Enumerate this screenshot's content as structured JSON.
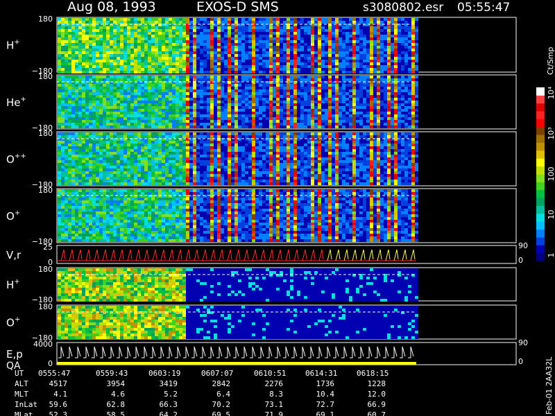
{
  "header": {
    "date": "Aug 08, 1993",
    "instrument": "EXOS-D SMS",
    "file": "s3080802.esr",
    "time": "05:55:47"
  },
  "chart_data": {
    "type": "heatmap",
    "panels": [
      {
        "id": "h-plus",
        "label_base": "H",
        "label_sup": "+",
        "ytick_top": "180",
        "ytick_bottom": "−180",
        "kind": "spectrogram"
      },
      {
        "id": "he-plus",
        "label_base": "He",
        "label_sup": "+",
        "ytick_top": "180",
        "ytick_bottom": "−180",
        "kind": "spectrogram"
      },
      {
        "id": "o-pp",
        "label_base": "O",
        "label_sup": "++",
        "ytick_top": "180",
        "ytick_bottom": "−180",
        "kind": "spectrogram"
      },
      {
        "id": "o-plus",
        "label_base": "O",
        "label_sup": "+",
        "ytick_top": "180",
        "ytick_bottom": "−180",
        "kind": "spectrogram"
      },
      {
        "id": "vr",
        "label_base": "V,r",
        "label_sup": "",
        "ytick_top": "25",
        "ytick_bottom": "0",
        "right_top": "90",
        "right_bottom": "0",
        "kind": "line"
      },
      {
        "id": "h-plus-2",
        "label_base": "H",
        "label_sup": "+",
        "ytick_top": "180",
        "ytick_bottom": "−180",
        "kind": "spectrogram"
      },
      {
        "id": "o-plus-2",
        "label_base": "O",
        "label_sup": "+",
        "ytick_top": "180",
        "ytick_bottom": "−180",
        "kind": "spectrogram"
      },
      {
        "id": "ep-qa",
        "label_base": "E,p",
        "label_base2": "QA",
        "label_sup": "",
        "ytick_top": "4000",
        "ytick_bottom": "0",
        "right_top": "90",
        "right_bottom": "0",
        "kind": "step"
      }
    ],
    "colorbar": {
      "unit": "Ct/Smp",
      "tick_labels": [
        "1",
        "10",
        "100",
        "10³",
        "10⁴"
      ],
      "colors": [
        "#000080",
        "#0000b0",
        "#0040e0",
        "#0080ff",
        "#00c0ff",
        "#00e0e0",
        "#00c0a0",
        "#00a060",
        "#00c040",
        "#40d020",
        "#80e020",
        "#c0e000",
        "#ffff00",
        "#e0c000",
        "#c09000",
        "#a07000",
        "#804000",
        "#ff0000",
        "#ff2020",
        "#e00000",
        "#ff4040",
        "#ffffff"
      ]
    },
    "orbit_table": {
      "rows": [
        {
          "label": "UT",
          "values": [
            "0555:47",
            "0559:43",
            "0603:19",
            "0607:07",
            "0610:51",
            "0614:31",
            "0618:15"
          ]
        },
        {
          "label": "ALT",
          "values": [
            "4517",
            "3954",
            "3419",
            "2842",
            "2276",
            "1736",
            "1228"
          ]
        },
        {
          "label": "MLT",
          "values": [
            "4.1",
            "4.6",
            "5.2",
            "6.4",
            "8.3",
            "10.4",
            "12.0"
          ]
        },
        {
          "label": "InLat",
          "values": [
            "59.6",
            "62.8",
            "66.3",
            "70.2",
            "73.1",
            "72.7",
            "66.9"
          ]
        },
        {
          "label": "MLat",
          "values": [
            "52.3",
            "58.5",
            "64.2",
            "69.5",
            "71.9",
            "69.1",
            "60.7"
          ]
        }
      ]
    },
    "footer_stamp": "Feb-01 2AA32L"
  }
}
